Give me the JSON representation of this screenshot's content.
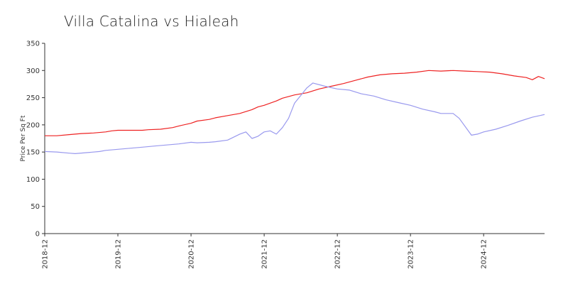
{
  "chart_data": {
    "type": "line",
    "title": "Villa Catalina vs Hialeah",
    "xlabel": "",
    "ylabel": "Price Per Sq Ft",
    "ylim": [
      0,
      350
    ],
    "yticks": [
      0,
      50,
      100,
      150,
      200,
      250,
      300,
      350
    ],
    "xlim": [
      2018.917,
      2025.75
    ],
    "xticks": [
      {
        "label": "2018-12",
        "value": 2018.917
      },
      {
        "label": "2019-12",
        "value": 2019.917
      },
      {
        "label": "2020-12",
        "value": 2020.917
      },
      {
        "label": "2021-12",
        "value": 2021.917
      },
      {
        "label": "2022-12",
        "value": 2022.917
      },
      {
        "label": "2023-12",
        "value": 2023.917
      },
      {
        "label": "2024-12",
        "value": 2024.917
      }
    ],
    "grid": false,
    "legend": "none",
    "series": [
      {
        "color": "#ee2222",
        "points": [
          [
            2018.917,
            180
          ],
          [
            2019.083,
            180
          ],
          [
            2019.25,
            182
          ],
          [
            2019.417,
            184
          ],
          [
            2019.583,
            185
          ],
          [
            2019.75,
            187
          ],
          [
            2019.833,
            189
          ],
          [
            2019.917,
            190
          ],
          [
            2020.083,
            190
          ],
          [
            2020.25,
            190
          ],
          [
            2020.333,
            191
          ],
          [
            2020.5,
            192
          ],
          [
            2020.667,
            195
          ],
          [
            2020.75,
            198
          ],
          [
            2020.917,
            203
          ],
          [
            2021.0,
            207
          ],
          [
            2021.167,
            210
          ],
          [
            2021.25,
            213
          ],
          [
            2021.417,
            217
          ],
          [
            2021.583,
            221
          ],
          [
            2021.75,
            228
          ],
          [
            2021.833,
            233
          ],
          [
            2021.917,
            236
          ],
          [
            2022.083,
            244
          ],
          [
            2022.167,
            249
          ],
          [
            2022.333,
            255
          ],
          [
            2022.5,
            259
          ],
          [
            2022.667,
            266
          ],
          [
            2022.833,
            271
          ],
          [
            2023.0,
            276
          ],
          [
            2023.167,
            282
          ],
          [
            2023.333,
            288
          ],
          [
            2023.5,
            292
          ],
          [
            2023.667,
            294
          ],
          [
            2023.833,
            295
          ],
          [
            2024.0,
            297
          ],
          [
            2024.167,
            300
          ],
          [
            2024.333,
            299
          ],
          [
            2024.5,
            300
          ],
          [
            2024.667,
            299
          ],
          [
            2024.833,
            298
          ],
          [
            2025.0,
            297
          ],
          [
            2025.167,
            294
          ],
          [
            2025.333,
            290
          ],
          [
            2025.5,
            287
          ],
          [
            2025.583,
            283
          ],
          [
            2025.667,
            289
          ],
          [
            2025.75,
            285
          ]
        ]
      },
      {
        "color": "#9999ee",
        "points": [
          [
            2018.917,
            151
          ],
          [
            2019.083,
            150
          ],
          [
            2019.25,
            148
          ],
          [
            2019.333,
            147
          ],
          [
            2019.5,
            149
          ],
          [
            2019.667,
            151
          ],
          [
            2019.75,
            153
          ],
          [
            2019.917,
            155
          ],
          [
            2020.083,
            157
          ],
          [
            2020.25,
            159
          ],
          [
            2020.417,
            161
          ],
          [
            2020.583,
            163
          ],
          [
            2020.75,
            165
          ],
          [
            2020.917,
            168
          ],
          [
            2021.0,
            167
          ],
          [
            2021.167,
            168
          ],
          [
            2021.25,
            169
          ],
          [
            2021.417,
            172
          ],
          [
            2021.583,
            183
          ],
          [
            2021.667,
            187
          ],
          [
            2021.75,
            175
          ],
          [
            2021.833,
            179
          ],
          [
            2021.917,
            187
          ],
          [
            2022.0,
            189
          ],
          [
            2022.083,
            183
          ],
          [
            2022.167,
            195
          ],
          [
            2022.25,
            212
          ],
          [
            2022.333,
            240
          ],
          [
            2022.5,
            268
          ],
          [
            2022.583,
            277
          ],
          [
            2022.75,
            271
          ],
          [
            2022.917,
            266
          ],
          [
            2023.083,
            264
          ],
          [
            2023.25,
            257
          ],
          [
            2023.417,
            253
          ],
          [
            2023.583,
            246
          ],
          [
            2023.75,
            241
          ],
          [
            2023.917,
            236
          ],
          [
            2024.083,
            229
          ],
          [
            2024.25,
            224
          ],
          [
            2024.333,
            221
          ],
          [
            2024.5,
            221
          ],
          [
            2024.583,
            212
          ],
          [
            2024.75,
            181
          ],
          [
            2024.833,
            183
          ],
          [
            2024.917,
            187
          ],
          [
            2025.083,
            192
          ],
          [
            2025.25,
            199
          ],
          [
            2025.417,
            207
          ],
          [
            2025.583,
            214
          ],
          [
            2025.75,
            219
          ]
        ]
      }
    ]
  }
}
